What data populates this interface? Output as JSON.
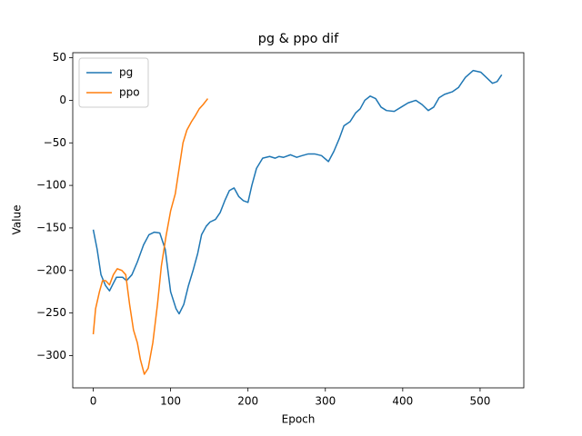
{
  "chart_data": {
    "type": "line",
    "title": "pg & ppo dif",
    "xlabel": "Epoch",
    "ylabel": "Value",
    "xlim": [
      -26.5,
      556.5
    ],
    "ylim": [
      -338,
      56
    ],
    "xticks": [
      0,
      100,
      200,
      300,
      400,
      500
    ],
    "yticks": [
      {
        "value": -300,
        "label": "−300"
      },
      {
        "value": -250,
        "label": "−250"
      },
      {
        "value": -200,
        "label": "−200"
      },
      {
        "value": -150,
        "label": "−150"
      },
      {
        "value": -100,
        "label": "−100"
      },
      {
        "value": -50,
        "label": "−50"
      },
      0,
      50
    ],
    "legend": "upper left",
    "series": [
      {
        "name": "pg",
        "color": "#1f77b4",
        "x": [
          0,
          5,
          10,
          16,
          21,
          26,
          30,
          38,
          43,
          50,
          57,
          65,
          72,
          79,
          86,
          93,
          100,
          107,
          111,
          117,
          123,
          129,
          135,
          140,
          146,
          151,
          158,
          164,
          170,
          176,
          182,
          188,
          194,
          200,
          205,
          211,
          219,
          228,
          235,
          240,
          246,
          255,
          263,
          270,
          278,
          286,
          295,
          304,
          311,
          318,
          324,
          332,
          339,
          345,
          351,
          358,
          365,
          372,
          379,
          389,
          398,
          407,
          417,
          425,
          433,
          440,
          447,
          454,
          464,
          472,
          481,
          491,
          501,
          508,
          516,
          522,
          528
        ],
        "values": [
          -152,
          -175,
          -205,
          -218,
          -224,
          -215,
          -208,
          -208,
          -212,
          -205,
          -190,
          -170,
          -158,
          -155,
          -156,
          -175,
          -225,
          -245,
          -251,
          -240,
          -218,
          -200,
          -180,
          -158,
          -148,
          -143,
          -140,
          -132,
          -118,
          -106,
          -103,
          -113,
          -118,
          -120,
          -100,
          -80,
          -68,
          -66,
          -68,
          -66,
          -67,
          -64,
          -67,
          -65,
          -63,
          -63,
          -65,
          -72,
          -60,
          -45,
          -30,
          -25,
          -15,
          -10,
          0,
          5,
          2,
          -8,
          -12,
          -13,
          -8,
          -3,
          0,
          -5,
          -12,
          -8,
          3,
          7,
          10,
          15,
          27,
          35,
          33,
          27,
          20,
          22,
          30
        ]
      },
      {
        "name": "ppo",
        "color": "#ff7f0e",
        "x": [
          0,
          3,
          8,
          12,
          16,
          21,
          26,
          31,
          37,
          42,
          47,
          52,
          57,
          61,
          66,
          71,
          77,
          83,
          88,
          94,
          100,
          106,
          111,
          116,
          121,
          127,
          132,
          137,
          142,
          148
        ],
        "values": [
          -275,
          -245,
          -225,
          -212,
          -212,
          -217,
          -205,
          -198,
          -200,
          -205,
          -240,
          -270,
          -285,
          -305,
          -322,
          -315,
          -285,
          -240,
          -195,
          -160,
          -130,
          -110,
          -80,
          -50,
          -35,
          -25,
          -18,
          -10,
          -5,
          2
        ]
      }
    ]
  }
}
